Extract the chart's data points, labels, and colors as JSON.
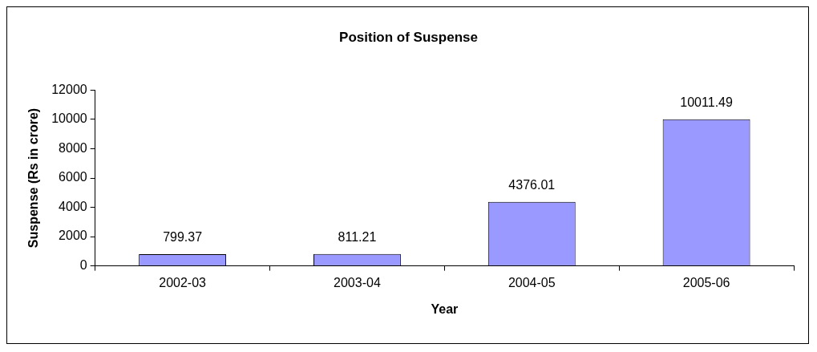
{
  "chart_data": {
    "type": "bar",
    "title": "Position of Suspense",
    "xlabel": "Year",
    "ylabel": "Suspense (Rs in crore)",
    "categories": [
      "2002-03",
      "2003-04",
      "2004-05",
      "2005-06"
    ],
    "values": [
      799.37,
      811.21,
      4376.01,
      10011.49
    ],
    "color": "#9999ff",
    "ylim": [
      0,
      12000
    ],
    "yticks": [
      0,
      2000,
      4000,
      6000,
      8000,
      10000,
      12000
    ],
    "data_labels": true
  }
}
